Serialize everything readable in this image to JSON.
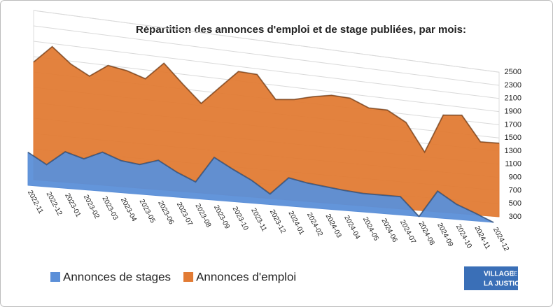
{
  "chart_data": {
    "type": "area3d",
    "title": "Répartition des annonces d'emploi et de stage publiées, par mois:",
    "categories": [
      "2022-11",
      "2022-12",
      "2023-01",
      "2023-02",
      "2023-03",
      "2023-04",
      "2023-05",
      "2023-06",
      "2023-07",
      "2023-08",
      "2023-09",
      "2023-10",
      "2023-11",
      "2023-12",
      "2024-01",
      "2024-02",
      "2024-03",
      "2024-04",
      "2024-05",
      "2024-06",
      "2024-07",
      "2024-08",
      "2024-09",
      "2024-10",
      "2024-11",
      "2024-12"
    ],
    "series": [
      {
        "name": "Annonces de stages",
        "color": "#5b8fd8",
        "values": [
          730,
          590,
          780,
          710,
          820,
          730,
          700,
          780,
          640,
          530,
          890,
          750,
          620,
          450,
          700,
          650,
          620,
          590,
          570,
          570,
          570,
          300,
          700,
          530,
          420,
          300
        ]
      },
      {
        "name": "Annonces d'emploi",
        "color": "#e27b34",
        "values": [
          1830,
          2060,
          1860,
          1730,
          1900,
          1860,
          1780,
          2020,
          1770,
          1530,
          1780,
          2030,
          2020,
          1700,
          1730,
          1800,
          1850,
          1840,
          1730,
          1730,
          1580,
          1170,
          1750,
          1780,
          1410,
          1420
        ]
      }
    ],
    "ylim": [
      300,
      2500
    ],
    "yticks": [
      300,
      500,
      700,
      900,
      1100,
      1300,
      1500,
      1700,
      1900,
      2100,
      2300,
      2500
    ],
    "grid": true,
    "legend": "bottom",
    "logo": {
      "line1": "VILLAGE",
      "line1b": "DE",
      "line2": "LA JUSTICE"
    }
  }
}
